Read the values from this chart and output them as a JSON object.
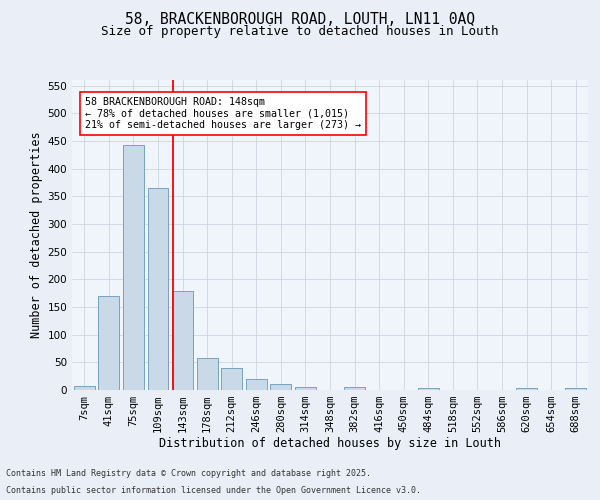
{
  "title1": "58, BRACKENBOROUGH ROAD, LOUTH, LN11 0AQ",
  "title2": "Size of property relative to detached houses in Louth",
  "xlabel": "Distribution of detached houses by size in Louth",
  "ylabel": "Number of detached properties",
  "categories": [
    "7sqm",
    "41sqm",
    "75sqm",
    "109sqm",
    "143sqm",
    "178sqm",
    "212sqm",
    "246sqm",
    "280sqm",
    "314sqm",
    "348sqm",
    "382sqm",
    "416sqm",
    "450sqm",
    "484sqm",
    "518sqm",
    "552sqm",
    "586sqm",
    "620sqm",
    "654sqm",
    "688sqm"
  ],
  "values": [
    8,
    170,
    442,
    365,
    178,
    57,
    40,
    20,
    10,
    5,
    0,
    5,
    0,
    0,
    3,
    0,
    0,
    0,
    3,
    0,
    3
  ],
  "bar_color": "#c9d9e8",
  "bar_edge_color": "#6699bb",
  "vline_x": 3.62,
  "annotation_text": "58 BRACKENBOROUGH ROAD: 148sqm\n← 78% of detached houses are smaller (1,015)\n21% of semi-detached houses are larger (273) →",
  "vline_color": "red",
  "annotation_box_color": "white",
  "annotation_box_edge": "red",
  "footer1": "Contains HM Land Registry data © Crown copyright and database right 2025.",
  "footer2": "Contains public sector information licensed under the Open Government Licence v3.0.",
  "ylim": [
    0,
    560
  ],
  "yticks": [
    0,
    50,
    100,
    150,
    200,
    250,
    300,
    350,
    400,
    450,
    500,
    550
  ],
  "bg_color": "#eaeff7",
  "plot_bg_color": "#f0f4fb",
  "grid_color": "#c8d0dc",
  "title_fontsize": 10.5,
  "subtitle_fontsize": 9,
  "axis_label_fontsize": 8.5,
  "tick_fontsize": 7.5,
  "annot_fontsize": 7.2,
  "footer_fontsize": 6.0
}
